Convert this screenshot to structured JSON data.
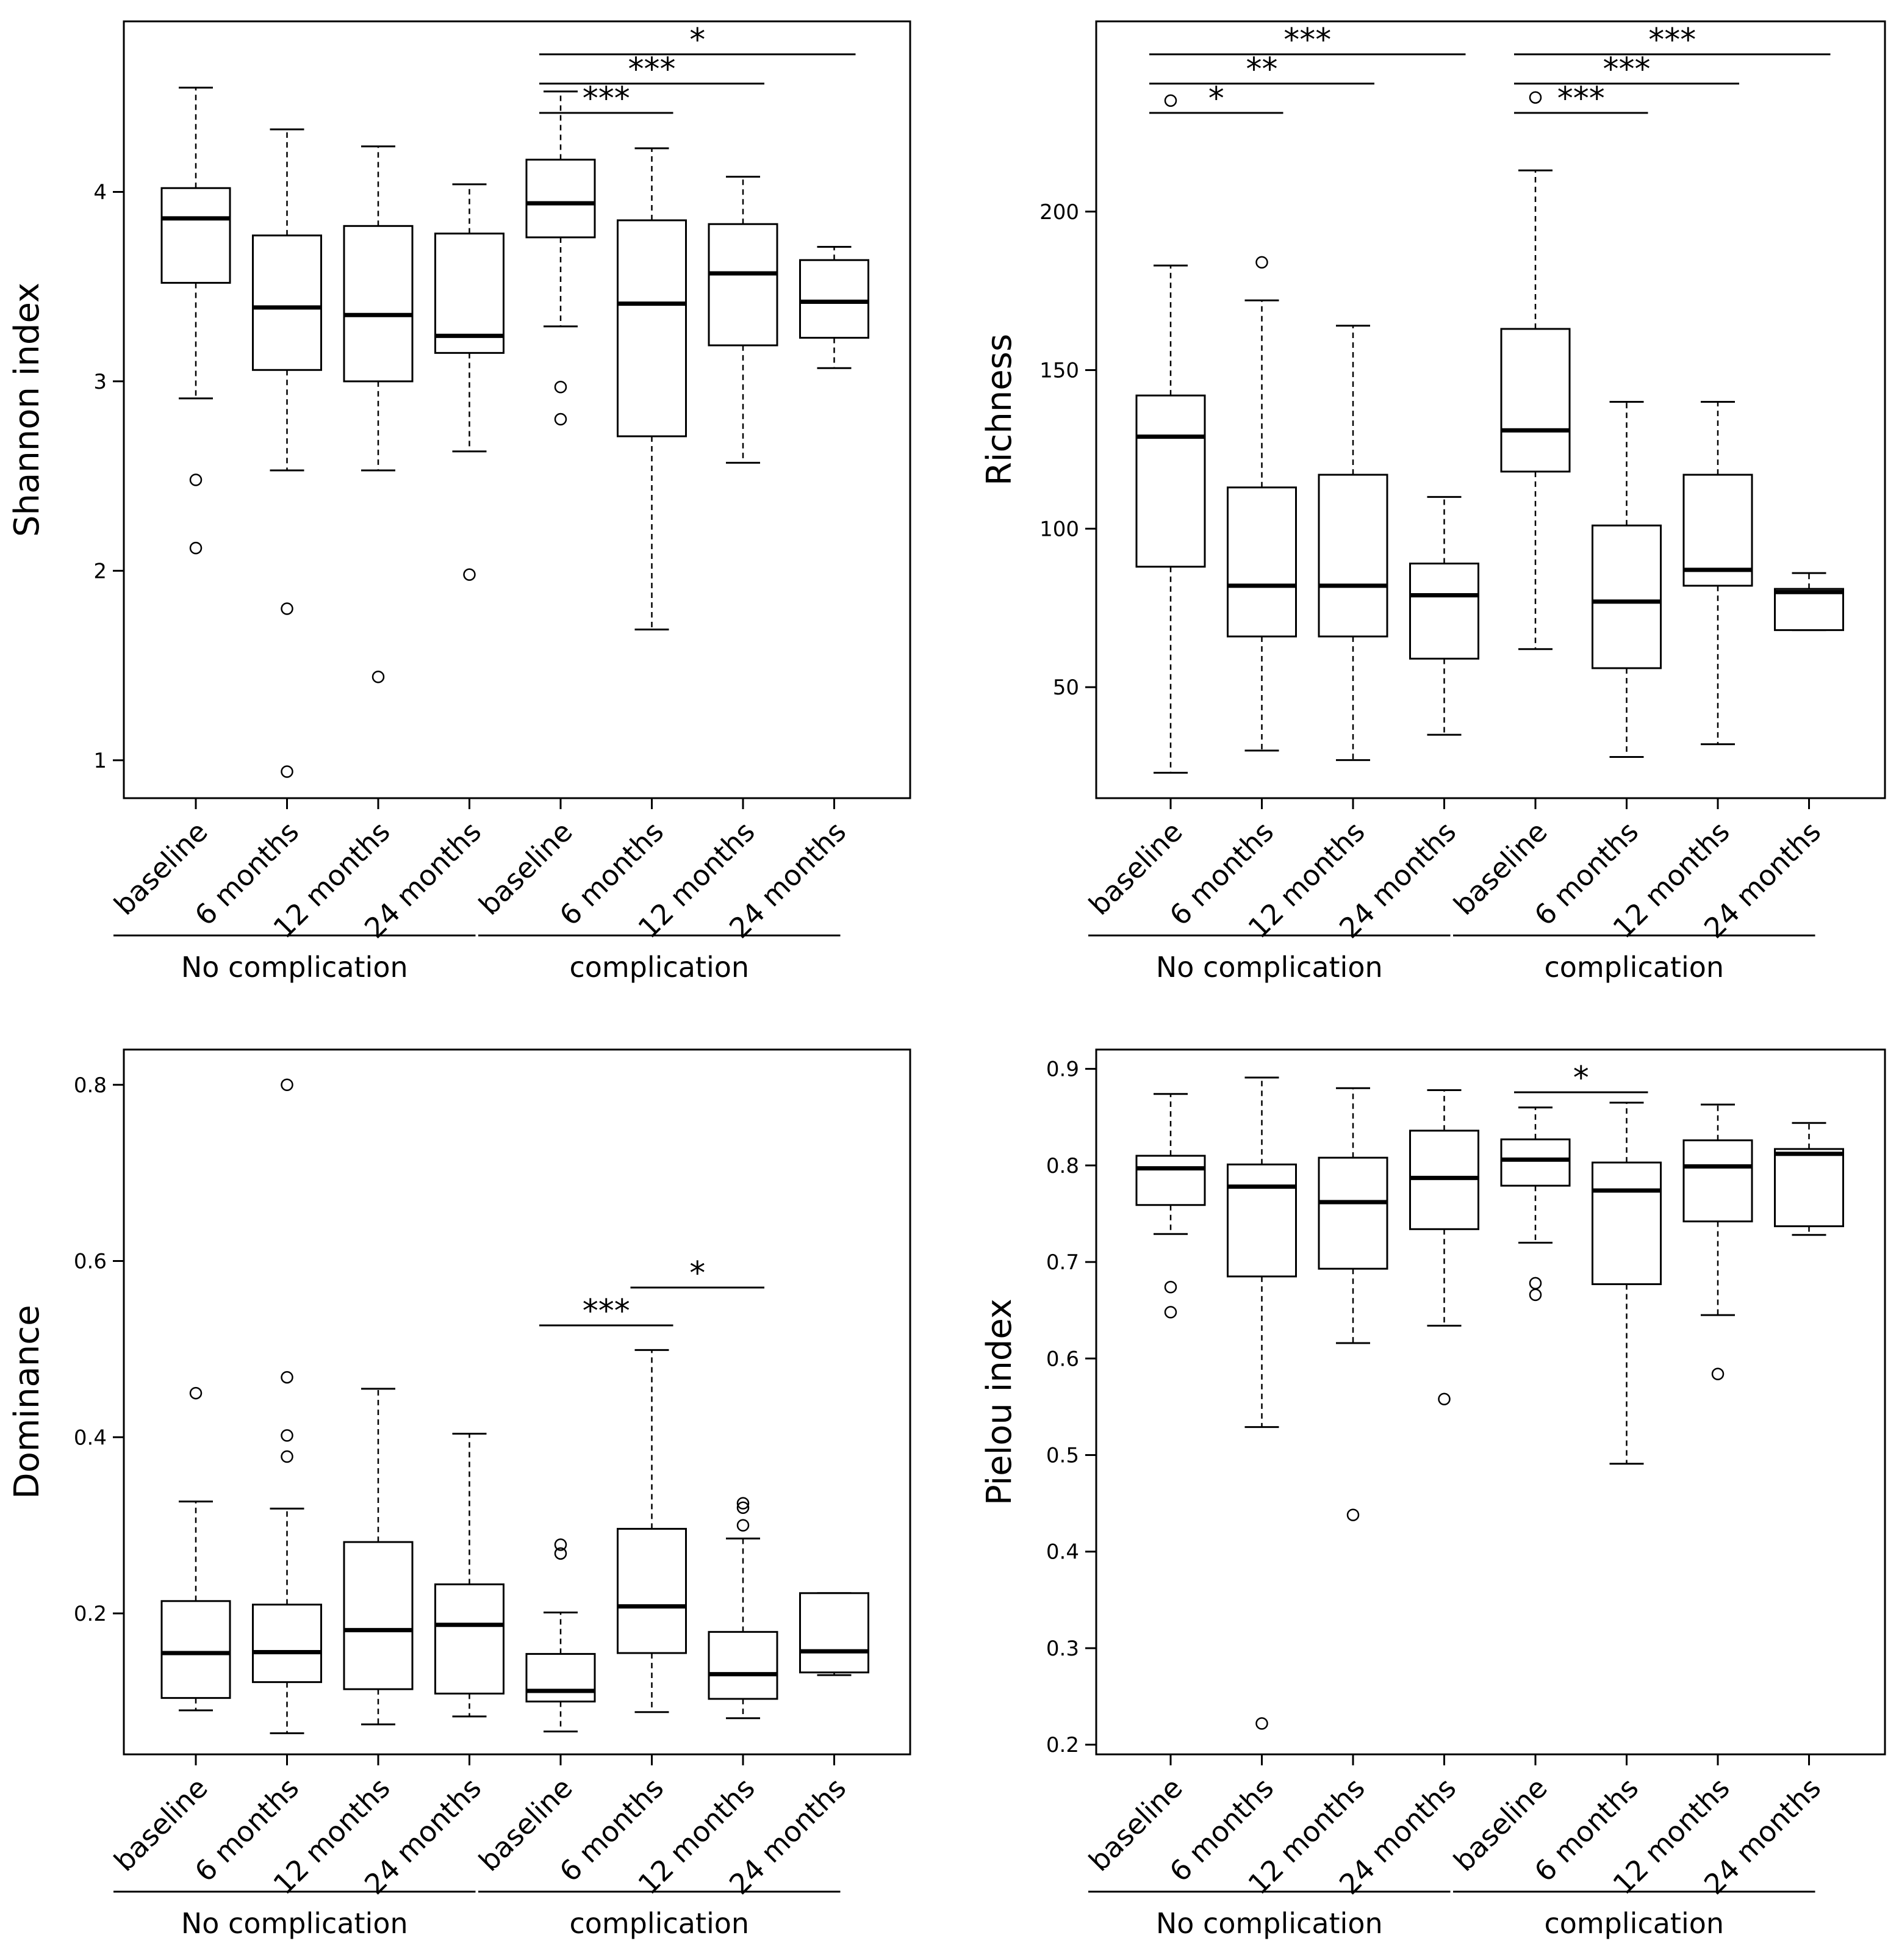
{
  "chart_data": [
    {
      "type": "box",
      "ylabel": "Shannon index",
      "ylim": [
        0.8,
        4.9
      ],
      "yticks": [
        1,
        2,
        3,
        4
      ],
      "categories": [
        "baseline",
        "6 months",
        "12 months",
        "24 months",
        "baseline",
        "6 months",
        "12 months",
        "24 months"
      ],
      "groups": [
        {
          "label": "No complication",
          "indices": [
            0,
            1,
            2,
            3
          ]
        },
        {
          "label": "complication",
          "indices": [
            4,
            5,
            6,
            7
          ]
        }
      ],
      "boxes": [
        {
          "min": 2.91,
          "q1": 3.52,
          "median": 3.86,
          "q3": 4.02,
          "max": 4.55,
          "outliers": [
            2.48,
            2.12
          ]
        },
        {
          "min": 2.53,
          "q1": 3.06,
          "median": 3.39,
          "q3": 3.77,
          "max": 4.33,
          "outliers": [
            1.8,
            0.94
          ]
        },
        {
          "min": 2.53,
          "q1": 3.0,
          "median": 3.35,
          "q3": 3.82,
          "max": 4.24,
          "outliers": [
            1.44
          ]
        },
        {
          "min": 2.63,
          "q1": 3.15,
          "median": 3.24,
          "q3": 3.78,
          "max": 4.04,
          "outliers": [
            1.98
          ]
        },
        {
          "min": 3.29,
          "q1": 3.76,
          "median": 3.94,
          "q3": 4.17,
          "max": 4.53,
          "outliers": [
            2.97,
            2.8
          ]
        },
        {
          "min": 1.69,
          "q1": 2.71,
          "median": 3.41,
          "q3": 3.85,
          "max": 4.23,
          "outliers": []
        },
        {
          "min": 2.57,
          "q1": 3.19,
          "median": 3.57,
          "q3": 3.83,
          "max": 4.08,
          "outliers": []
        },
        {
          "min": 3.07,
          "q1": 3.23,
          "median": 3.42,
          "q3": 3.64,
          "max": 3.71,
          "outliers": []
        }
      ],
      "significance": [
        {
          "from": 4,
          "to": 5,
          "label": "***"
        },
        {
          "from": 4,
          "to": 6,
          "label": "***"
        },
        {
          "from": 4,
          "to": 7,
          "label": "*"
        }
      ]
    },
    {
      "type": "box",
      "ylabel": "Richness",
      "ylim": [
        15,
        260
      ],
      "yticks": [
        50,
        100,
        150,
        200
      ],
      "categories": [
        "baseline",
        "6 months",
        "12 months",
        "24 months",
        "baseline",
        "6 months",
        "12 months",
        "24 months"
      ],
      "groups": [
        {
          "label": "No complication",
          "indices": [
            0,
            1,
            2,
            3
          ]
        },
        {
          "label": "complication",
          "indices": [
            4,
            5,
            6,
            7
          ]
        }
      ],
      "boxes": [
        {
          "min": 23,
          "q1": 88,
          "median": 129,
          "q3": 142,
          "max": 183,
          "outliers": [
            235
          ]
        },
        {
          "min": 30,
          "q1": 66,
          "median": 82,
          "q3": 113,
          "max": 172,
          "outliers": [
            184
          ]
        },
        {
          "min": 27,
          "q1": 66,
          "median": 82,
          "q3": 117,
          "max": 164,
          "outliers": []
        },
        {
          "min": 35,
          "q1": 59,
          "median": 79,
          "q3": 89,
          "max": 110,
          "outliers": []
        },
        {
          "min": 62,
          "q1": 118,
          "median": 131,
          "q3": 163,
          "max": 213,
          "outliers": [
            236
          ]
        },
        {
          "min": 28,
          "q1": 56,
          "median": 77,
          "q3": 101,
          "max": 140,
          "outliers": []
        },
        {
          "min": 32,
          "q1": 82,
          "median": 87,
          "q3": 117,
          "max": 140,
          "outliers": []
        },
        {
          "min": 68,
          "q1": 68,
          "median": 80,
          "q3": 81,
          "max": 86,
          "outliers": []
        }
      ],
      "significance": [
        {
          "from": 0,
          "to": 1,
          "label": "*"
        },
        {
          "from": 0,
          "to": 2,
          "label": "**"
        },
        {
          "from": 0,
          "to": 3,
          "label": "***"
        },
        {
          "from": 4,
          "to": 5,
          "label": "***"
        },
        {
          "from": 4,
          "to": 6,
          "label": "***"
        },
        {
          "from": 4,
          "to": 7,
          "label": "***"
        }
      ]
    },
    {
      "type": "box",
      "ylabel": "Dominance",
      "ylim": [
        0.04,
        0.84
      ],
      "yticks": [
        0.2,
        0.4,
        0.6,
        0.8
      ],
      "categories": [
        "baseline",
        "6 months",
        "12 months",
        "24 months",
        "baseline",
        "6 months",
        "12 months",
        "24 months"
      ],
      "groups": [
        {
          "label": "No complication",
          "indices": [
            0,
            1,
            2,
            3
          ]
        },
        {
          "label": "complication",
          "indices": [
            4,
            5,
            6,
            7
          ]
        }
      ],
      "boxes": [
        {
          "min": 0.09,
          "q1": 0.104,
          "median": 0.155,
          "q3": 0.214,
          "max": 0.327,
          "outliers": [
            0.45
          ]
        },
        {
          "min": 0.064,
          "q1": 0.122,
          "median": 0.156,
          "q3": 0.21,
          "max": 0.319,
          "outliers": [
            0.8,
            0.468,
            0.402,
            0.378
          ]
        },
        {
          "min": 0.074,
          "q1": 0.114,
          "median": 0.181,
          "q3": 0.281,
          "max": 0.455,
          "outliers": []
        },
        {
          "min": 0.083,
          "q1": 0.109,
          "median": 0.187,
          "q3": 0.233,
          "max": 0.404,
          "outliers": []
        },
        {
          "min": 0.066,
          "q1": 0.1,
          "median": 0.112,
          "q3": 0.154,
          "max": 0.201,
          "outliers": [
            0.278,
            0.268
          ]
        },
        {
          "min": 0.088,
          "q1": 0.155,
          "median": 0.208,
          "q3": 0.296,
          "max": 0.499,
          "outliers": []
        },
        {
          "min": 0.081,
          "q1": 0.103,
          "median": 0.131,
          "q3": 0.179,
          "max": 0.285,
          "outliers": [
            0.325,
            0.32,
            0.3
          ]
        },
        {
          "min": 0.13,
          "q1": 0.133,
          "median": 0.157,
          "q3": 0.223,
          "max": 0.223,
          "outliers": []
        }
      ],
      "significance": [
        {
          "from": 4,
          "to": 5,
          "label": "***"
        },
        {
          "from": 5,
          "to": 6,
          "label": "*"
        }
      ]
    },
    {
      "type": "box",
      "ylabel": "Pielou index",
      "ylim": [
        0.19,
        0.92
      ],
      "yticks": [
        0.2,
        0.3,
        0.4,
        0.5,
        0.6,
        0.7,
        0.8,
        0.9
      ],
      "categories": [
        "baseline",
        "6 months",
        "12 months",
        "24 months",
        "baseline",
        "6 months",
        "12 months",
        "24 months"
      ],
      "groups": [
        {
          "label": "No complication",
          "indices": [
            0,
            1,
            2,
            3
          ]
        },
        {
          "label": "complication",
          "indices": [
            4,
            5,
            6,
            7
          ]
        }
      ],
      "boxes": [
        {
          "min": 0.729,
          "q1": 0.759,
          "median": 0.797,
          "q3": 0.81,
          "max": 0.874,
          "outliers": [
            0.674,
            0.648
          ]
        },
        {
          "min": 0.529,
          "q1": 0.685,
          "median": 0.778,
          "q3": 0.801,
          "max": 0.891,
          "outliers": [
            0.222
          ]
        },
        {
          "min": 0.616,
          "q1": 0.693,
          "median": 0.762,
          "q3": 0.808,
          "max": 0.88,
          "outliers": [
            0.438
          ]
        },
        {
          "min": 0.634,
          "q1": 0.734,
          "median": 0.787,
          "q3": 0.836,
          "max": 0.878,
          "outliers": [
            0.558
          ]
        },
        {
          "min": 0.72,
          "q1": 0.779,
          "median": 0.806,
          "q3": 0.827,
          "max": 0.86,
          "outliers": [
            0.678,
            0.666
          ]
        },
        {
          "min": 0.491,
          "q1": 0.677,
          "median": 0.774,
          "q3": 0.803,
          "max": 0.865,
          "outliers": []
        },
        {
          "min": 0.645,
          "q1": 0.742,
          "median": 0.799,
          "q3": 0.826,
          "max": 0.863,
          "outliers": [
            0.584
          ]
        },
        {
          "min": 0.728,
          "q1": 0.737,
          "median": 0.812,
          "q3": 0.817,
          "max": 0.844,
          "outliers": []
        }
      ],
      "significance": [
        {
          "from": 4,
          "to": 5,
          "label": "*"
        }
      ]
    }
  ]
}
